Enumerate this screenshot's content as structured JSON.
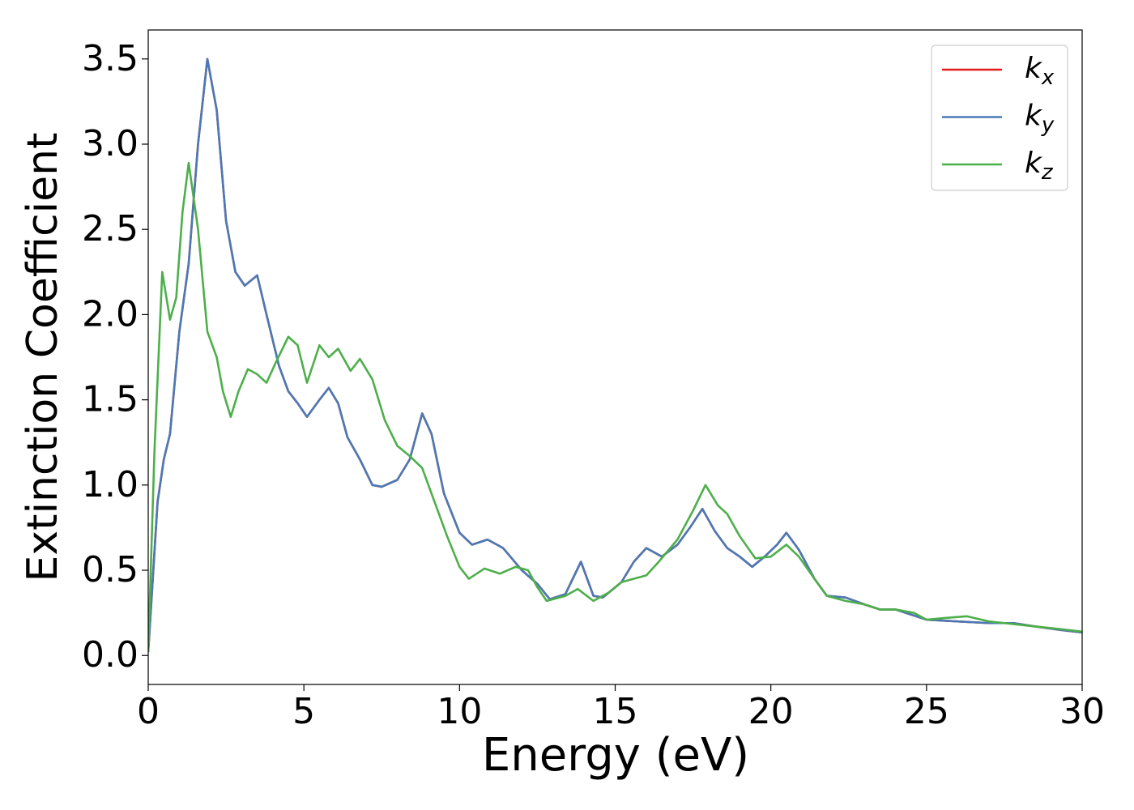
{
  "chart_data": {
    "type": "line",
    "xlabel": "Energy (eV)",
    "ylabel": "Extinction Coefficient",
    "xlim": [
      0,
      30
    ],
    "ylim": [
      -0.17,
      3.67
    ],
    "xticks": [
      0,
      5,
      10,
      15,
      20,
      25,
      30
    ],
    "yticks": [
      {
        "value": 0,
        "label": "0.0"
      },
      0.5,
      {
        "value": 1,
        "label": "1.0"
      },
      1.5,
      {
        "value": 2,
        "label": "2.0"
      },
      2.5,
      {
        "value": 3,
        "label": "3.0"
      },
      3.5
    ],
    "grid": false,
    "legend": "upper right",
    "series": [
      {
        "name": "kx",
        "color": "#e41a1c",
        "x": [
          0,
          0.3,
          0.5,
          0.7,
          1.0,
          1.3,
          1.6,
          1.9,
          2.2,
          2.5,
          2.8,
          3.1,
          3.5,
          3.8,
          4.2,
          4.5,
          4.8,
          5.1,
          5.5,
          5.8,
          6.1,
          6.4,
          6.8,
          7.2,
          7.5,
          8.0,
          8.4,
          8.8,
          9.1,
          9.5,
          10.0,
          10.4,
          10.9,
          11.4,
          12.0,
          12.5,
          12.9,
          13.4,
          13.9,
          14.3,
          14.6,
          15.2,
          15.6,
          16.0,
          16.5,
          17.0,
          17.4,
          17.8,
          18.2,
          18.6,
          19.0,
          19.4,
          19.8,
          20.2,
          20.5,
          20.9,
          21.4,
          21.8,
          22.4,
          23.0,
          23.5,
          24.0,
          25.0,
          26.0,
          27.0,
          27.8,
          28.5,
          29.3,
          30
        ],
        "values": [
          0.02,
          0.9,
          1.15,
          1.3,
          1.9,
          2.3,
          3.0,
          3.5,
          3.2,
          2.55,
          2.25,
          2.17,
          2.23,
          2.0,
          1.7,
          1.55,
          1.48,
          1.4,
          1.5,
          1.57,
          1.48,
          1.28,
          1.15,
          1.0,
          0.99,
          1.03,
          1.15,
          1.42,
          1.3,
          0.95,
          0.72,
          0.65,
          0.68,
          0.63,
          0.5,
          0.42,
          0.33,
          0.36,
          0.55,
          0.35,
          0.34,
          0.43,
          0.55,
          0.63,
          0.58,
          0.65,
          0.75,
          0.86,
          0.73,
          0.63,
          0.58,
          0.52,
          0.58,
          0.65,
          0.72,
          0.62,
          0.45,
          0.35,
          0.34,
          0.3,
          0.27,
          0.27,
          0.21,
          0.2,
          0.19,
          0.19,
          0.17,
          0.15,
          0.135
        ]
      },
      {
        "name": "ky",
        "color": "#4a7ab5",
        "x": [
          0,
          0.3,
          0.5,
          0.7,
          1.0,
          1.3,
          1.6,
          1.9,
          2.2,
          2.5,
          2.8,
          3.1,
          3.5,
          3.8,
          4.2,
          4.5,
          4.8,
          5.1,
          5.5,
          5.8,
          6.1,
          6.4,
          6.8,
          7.2,
          7.5,
          8.0,
          8.4,
          8.8,
          9.1,
          9.5,
          10.0,
          10.4,
          10.9,
          11.4,
          12.0,
          12.5,
          12.9,
          13.4,
          13.9,
          14.3,
          14.6,
          15.2,
          15.6,
          16.0,
          16.5,
          17.0,
          17.4,
          17.8,
          18.2,
          18.6,
          19.0,
          19.4,
          19.8,
          20.2,
          20.5,
          20.9,
          21.4,
          21.8,
          22.4,
          23.0,
          23.5,
          24.0,
          25.0,
          26.0,
          27.0,
          27.8,
          28.5,
          29.3,
          30
        ],
        "values": [
          0.02,
          0.9,
          1.15,
          1.3,
          1.9,
          2.3,
          3.0,
          3.5,
          3.2,
          2.55,
          2.25,
          2.17,
          2.23,
          2.0,
          1.7,
          1.55,
          1.48,
          1.4,
          1.5,
          1.57,
          1.48,
          1.28,
          1.15,
          1.0,
          0.99,
          1.03,
          1.15,
          1.42,
          1.3,
          0.95,
          0.72,
          0.65,
          0.68,
          0.63,
          0.5,
          0.42,
          0.33,
          0.36,
          0.55,
          0.35,
          0.34,
          0.43,
          0.55,
          0.63,
          0.58,
          0.65,
          0.75,
          0.86,
          0.73,
          0.63,
          0.58,
          0.52,
          0.58,
          0.65,
          0.72,
          0.62,
          0.45,
          0.35,
          0.34,
          0.3,
          0.27,
          0.27,
          0.21,
          0.2,
          0.19,
          0.19,
          0.17,
          0.15,
          0.135
        ]
      },
      {
        "name": "kz",
        "color": "#4daf4a",
        "x": [
          0,
          0.2,
          0.45,
          0.7,
          0.9,
          1.1,
          1.3,
          1.6,
          1.9,
          2.2,
          2.4,
          2.65,
          2.9,
          3.2,
          3.5,
          3.8,
          4.1,
          4.5,
          4.8,
          5.1,
          5.5,
          5.8,
          6.1,
          6.5,
          6.8,
          7.2,
          7.6,
          8.0,
          8.4,
          8.8,
          9.2,
          9.6,
          10.0,
          10.3,
          10.8,
          11.3,
          11.8,
          12.2,
          12.5,
          12.8,
          13.4,
          13.8,
          14.3,
          14.8,
          15.2,
          15.6,
          16.0,
          16.4,
          17.0,
          17.5,
          17.9,
          18.3,
          18.6,
          19.0,
          19.5,
          20.0,
          20.5,
          20.9,
          21.4,
          21.8,
          22.4,
          23.0,
          23.5,
          24.0,
          24.6,
          25.0,
          25.6,
          26.3,
          27.0,
          27.5,
          28.5,
          29.3,
          30
        ],
        "values": [
          0.02,
          1.2,
          2.25,
          1.97,
          2.1,
          2.6,
          2.89,
          2.5,
          1.9,
          1.75,
          1.55,
          1.4,
          1.55,
          1.68,
          1.65,
          1.6,
          1.72,
          1.87,
          1.82,
          1.6,
          1.82,
          1.75,
          1.8,
          1.67,
          1.74,
          1.62,
          1.38,
          1.23,
          1.17,
          1.1,
          0.9,
          0.7,
          0.52,
          0.45,
          0.51,
          0.48,
          0.52,
          0.5,
          0.4,
          0.32,
          0.35,
          0.39,
          0.32,
          0.37,
          0.43,
          0.45,
          0.47,
          0.55,
          0.68,
          0.85,
          1.0,
          0.88,
          0.83,
          0.7,
          0.57,
          0.58,
          0.65,
          0.58,
          0.45,
          0.35,
          0.32,
          0.3,
          0.27,
          0.27,
          0.25,
          0.21,
          0.22,
          0.23,
          0.2,
          0.19,
          0.17,
          0.155,
          0.14
        ]
      }
    ]
  }
}
